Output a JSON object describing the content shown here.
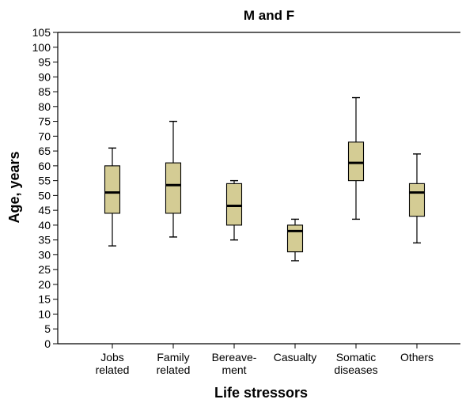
{
  "chart_data": {
    "type": "box",
    "title": "M and F",
    "xlabel": "Life stressors",
    "ylabel": "Age, years",
    "ylim": [
      0,
      105
    ],
    "ytick_step": 5,
    "grid": false,
    "box_color": "#d4cc94",
    "categories": [
      [
        "Jobs",
        "related"
      ],
      [
        "Family",
        "related"
      ],
      [
        "Bereave-",
        "ment"
      ],
      [
        "Casualty"
      ],
      [
        "Somatic",
        "diseases"
      ],
      [
        "Others"
      ]
    ],
    "boxes": [
      {
        "min": 33,
        "q1": 44,
        "median": 51,
        "q3": 60,
        "max": 66
      },
      {
        "min": 36,
        "q1": 44,
        "median": 53.5,
        "q3": 61,
        "max": 75
      },
      {
        "min": 35,
        "q1": 40,
        "median": 46.5,
        "q3": 54,
        "max": 55
      },
      {
        "min": 28,
        "q1": 31,
        "median": 38,
        "q3": 40,
        "max": 42
      },
      {
        "min": 42,
        "q1": 55,
        "median": 61,
        "q3": 68,
        "max": 83
      },
      {
        "min": 34,
        "q1": 43,
        "median": 51,
        "q3": 54,
        "max": 64
      }
    ]
  }
}
